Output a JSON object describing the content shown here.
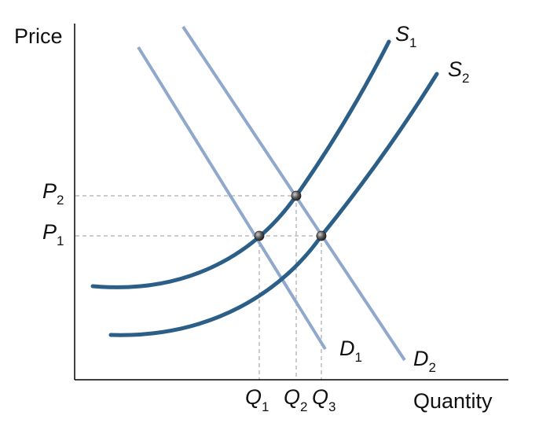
{
  "axes": {
    "y_title": "Price",
    "x_title": "Quantity"
  },
  "curves": {
    "s1": {
      "main": "S",
      "sub": "1"
    },
    "s2": {
      "main": "S",
      "sub": "2"
    },
    "d1": {
      "main": "D",
      "sub": "1"
    },
    "d2": {
      "main": "D",
      "sub": "2"
    }
  },
  "price_levels": [
    {
      "main": "P",
      "sub": "2"
    },
    {
      "main": "P",
      "sub": "1"
    }
  ],
  "quantity_levels": [
    {
      "main": "Q",
      "sub": "1"
    },
    {
      "main": "Q",
      "sub": "2"
    },
    {
      "main": "Q",
      "sub": "3"
    }
  ],
  "colors": {
    "axis": "#000000",
    "supply": "#2c5f88",
    "demand": "#8fa8cc",
    "guide": "#9a9a9a",
    "point": "#3a3a3a"
  }
}
